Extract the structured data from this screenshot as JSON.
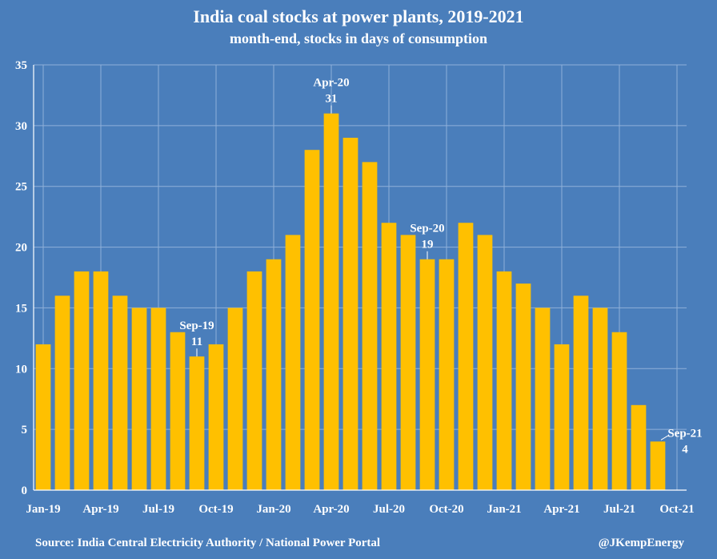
{
  "chart_data": {
    "type": "bar",
    "title": "India coal stocks at power plants, 2019-2021",
    "subtitle": "month-end, stocks in days of consumption",
    "categories": [
      "Jan-19",
      "Feb-19",
      "Mar-19",
      "Apr-19",
      "May-19",
      "Jun-19",
      "Jul-19",
      "Aug-19",
      "Sep-19",
      "Oct-19",
      "Nov-19",
      "Dec-19",
      "Jan-20",
      "Feb-20",
      "Mar-20",
      "Apr-20",
      "May-20",
      "Jun-20",
      "Jul-20",
      "Aug-20",
      "Sep-20",
      "Oct-20",
      "Nov-20",
      "Dec-20",
      "Jan-21",
      "Feb-21",
      "Mar-21",
      "Apr-21",
      "May-21",
      "Jun-21",
      "Jul-21",
      "Aug-21",
      "Sep-21",
      "Oct-21"
    ],
    "x_tick_labels": [
      "Jan-19",
      "Apr-19",
      "Jul-19",
      "Oct-19",
      "Jan-20",
      "Apr-20",
      "Jul-20",
      "Oct-20",
      "Jan-21",
      "Apr-21",
      "Jul-21",
      "Oct-21"
    ],
    "values": [
      12,
      16,
      18,
      18,
      16,
      15,
      15,
      13,
      11,
      12,
      15,
      18,
      19,
      21,
      28,
      31,
      29,
      27,
      22,
      21,
      19,
      19,
      22,
      21,
      18,
      17,
      15,
      12,
      16,
      15,
      13,
      7,
      4,
      null
    ],
    "ylim": [
      0,
      35
    ],
    "y_ticks": [
      0,
      5,
      10,
      15,
      20,
      25,
      30,
      35
    ],
    "grid": true,
    "bar_color": "#ffc000",
    "annotations": [
      {
        "category": "Sep-19",
        "label": "Sep-19",
        "value": "11"
      },
      {
        "category": "Apr-20",
        "label": "Apr-20",
        "value": "31"
      },
      {
        "category": "Sep-20",
        "label": "Sep-20",
        "value": "19"
      },
      {
        "category": "Sep-21",
        "label": "Sep-21",
        "value": "4"
      }
    ]
  },
  "footer": {
    "source": "Source: India Central Electricity Authority / National Power Portal",
    "credit": "@JKempEnergy"
  }
}
